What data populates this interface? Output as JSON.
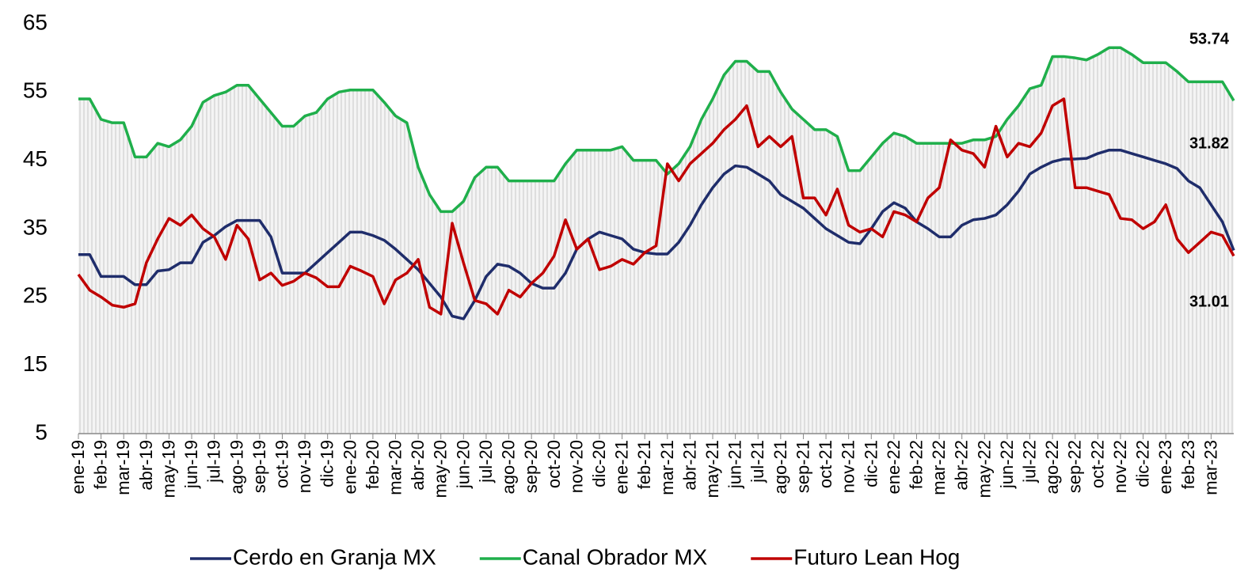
{
  "chart_data": {
    "type": "line",
    "categories": [
      "ene-19",
      null,
      "feb-19",
      null,
      "mar-19",
      null,
      "abr-19",
      null,
      "may-19",
      null,
      "jun-19",
      null,
      "jul-19",
      null,
      "ago-19",
      null,
      "sep-19",
      null,
      "oct-19",
      null,
      "nov-19",
      null,
      "dic-19",
      null,
      "ene-20",
      null,
      "feb-20",
      null,
      "mar-20",
      null,
      "abr-20",
      null,
      "may-20",
      null,
      "jun-20",
      null,
      "jul-20",
      null,
      "ago-20",
      null,
      "sep-20",
      null,
      "oct-20",
      null,
      "nov-20",
      null,
      "dic-20",
      null,
      "ene-21",
      null,
      "feb-21",
      null,
      "mar-21",
      null,
      "abr-21",
      null,
      "may-21",
      null,
      "jun-21",
      null,
      "jul-21",
      null,
      "ago-21",
      null,
      "sep-21",
      null,
      "oct-21",
      null,
      "nov-21",
      null,
      "dic-21",
      null,
      "ene-22",
      null,
      "feb-22",
      null,
      "mar-22",
      null,
      "abr-22",
      null,
      "may-22",
      null,
      "jun-22",
      null,
      "jul-22",
      null,
      "ago-22",
      null,
      "sep-22",
      null,
      "oct-22",
      null,
      "nov-22",
      null,
      "dic-22",
      null,
      "ene-23",
      null,
      "feb-23",
      null,
      "mar-23",
      null,
      null
    ],
    "series": [
      {
        "name": "Cerdo en Granja MX",
        "color": "#1f2d6b",
        "values": [
          31.2,
          31.2,
          28,
          28,
          28,
          26.8,
          26.8,
          28.8,
          29,
          30,
          30,
          33,
          34,
          35.3,
          36.2,
          36.2,
          36.2,
          33.8,
          28.5,
          28.5,
          28.5,
          30,
          31.5,
          33,
          34.5,
          34.5,
          34,
          33.3,
          32,
          30.5,
          29,
          27,
          25,
          22.2,
          21.8,
          24.5,
          28,
          29.8,
          29.5,
          28.5,
          27,
          26.3,
          26.3,
          28.5,
          32,
          33.5,
          34.5,
          34,
          33.5,
          32,
          31.5,
          31.3,
          31.3,
          33,
          35.5,
          38.5,
          41,
          43,
          44.2,
          44,
          43,
          42,
          40,
          39,
          38,
          36.5,
          35,
          34,
          33,
          32.8,
          35,
          37.5,
          38.8,
          38,
          36,
          35,
          33.8,
          33.8,
          35.5,
          36.3,
          36.5,
          37,
          38.5,
          40.5,
          43,
          44,
          44.8,
          45.2,
          45.2,
          45.3,
          46,
          46.5,
          46.5,
          46,
          45.5,
          45,
          44.5,
          43.8,
          42,
          41,
          38.5,
          36,
          31.82
        ]
      },
      {
        "name": "Canal Obrador MX",
        "color": "#1faf4b",
        "values": [
          54,
          54,
          51,
          50.5,
          50.5,
          45.5,
          45.5,
          47.5,
          47,
          48,
          50,
          53.5,
          54.5,
          55,
          56,
          56,
          54,
          52,
          50,
          50,
          51.5,
          52,
          54,
          55,
          55.3,
          55.3,
          55.3,
          53.5,
          51.5,
          50.5,
          44,
          40,
          37.5,
          37.5,
          39,
          42.5,
          44,
          44,
          42,
          42,
          42,
          42,
          42,
          44.5,
          46.5,
          46.5,
          46.5,
          46.5,
          47,
          45,
          45,
          45,
          43,
          44.5,
          47,
          51,
          54,
          57.5,
          59.5,
          59.5,
          58,
          58,
          55,
          52.5,
          51,
          49.5,
          49.5,
          48.5,
          43.5,
          43.5,
          45.5,
          47.5,
          49,
          48.5,
          47.5,
          47.5,
          47.5,
          47.5,
          47.5,
          48,
          48,
          48.5,
          51,
          53,
          55.5,
          56,
          60.2,
          60.2,
          60,
          59.7,
          60.5,
          61.5,
          61.5,
          60.5,
          59.3,
          59.3,
          59.3,
          58,
          56.5,
          56.5,
          56.5,
          56.5,
          53.74
        ]
      },
      {
        "name": "Futuro Lean Hog",
        "color": "#c00000",
        "values": [
          28.3,
          26,
          25,
          23.8,
          23.5,
          24,
          30,
          33.5,
          36.5,
          35.5,
          37,
          35,
          33.8,
          30.5,
          35.5,
          33.5,
          27.5,
          28.5,
          26.7,
          27.3,
          28.5,
          27.8,
          26.5,
          26.5,
          29.5,
          28.8,
          28,
          24,
          27.5,
          28.5,
          30.5,
          23.5,
          22.5,
          35.8,
          30,
          24.5,
          24,
          22.5,
          26,
          25,
          27,
          28.5,
          31,
          36.3,
          32,
          33.5,
          29,
          29.5,
          30.5,
          29.8,
          31.5,
          32.5,
          44.5,
          42,
          44.5,
          46,
          47.5,
          49.5,
          51,
          53,
          47,
          48.5,
          47,
          48.5,
          39.5,
          39.5,
          37,
          40.8,
          35.5,
          34.5,
          35,
          33.8,
          37.5,
          37,
          36,
          39.5,
          41,
          48,
          46.5,
          46,
          44,
          50,
          45.5,
          47.5,
          47,
          49,
          53,
          54,
          41,
          41,
          40.5,
          40,
          36.5,
          36.3,
          35,
          36,
          38.5,
          33.5,
          31.5,
          33,
          34.5,
          34,
          31.01
        ]
      }
    ],
    "ylim": [
      5,
      65
    ],
    "yticks": [
      5,
      15,
      25,
      35,
      45,
      55,
      65
    ],
    "legend": "bottom"
  }
}
